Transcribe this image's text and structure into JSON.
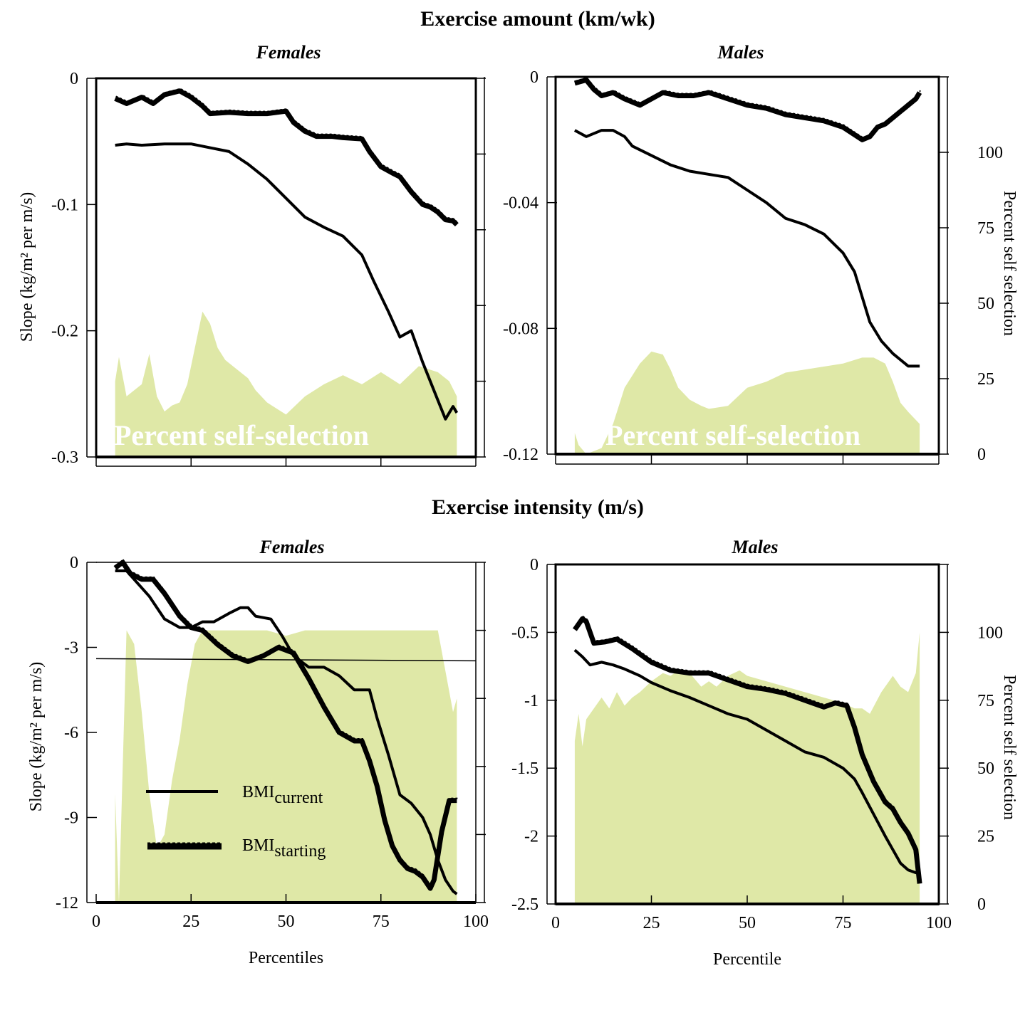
{
  "titles": {
    "top": "Exercise amount (km/wk)",
    "bottom": "Exercise intensity (m/s)"
  },
  "legend": {
    "current_base": "BMI",
    "current_sub": "current",
    "starting_base": "BMI",
    "starting_sub": "starting"
  },
  "colors": {
    "fill": "#dfe8a7",
    "line": "#000000"
  },
  "chart_data": [
    {
      "type": "line",
      "panel": "top-left",
      "title": "Females",
      "ylabel": "Slope (kg/m² per m/s)",
      "ylim": [
        -0.3,
        0
      ],
      "yticks": [
        "0",
        "-0.1",
        "-0.2",
        "-0.3"
      ],
      "yticks_right": [
        "",
        "",
        "",
        "",
        "",
        ""
      ],
      "xlim": [
        0,
        100
      ],
      "xticks": [
        "",
        "",
        "",
        ""
      ],
      "right_axis_label": "",
      "watermark": "Percent self-selection",
      "fill_area": {
        "name": "Percent self-selection",
        "x": [
          5,
          6,
          8,
          10,
          12,
          14,
          16,
          18,
          20,
          22,
          24,
          26,
          28,
          30,
          32,
          34,
          36,
          38,
          40,
          42,
          45,
          50,
          55,
          60,
          65,
          70,
          75,
          80,
          85,
          90,
          93,
          95
        ],
        "y": [
          25,
          33,
          20,
          22,
          24,
          34,
          20,
          15,
          17,
          18,
          24,
          36,
          48,
          44,
          36,
          32,
          30,
          28,
          26,
          22,
          18,
          14,
          20,
          24,
          27,
          24,
          28,
          24,
          30,
          28,
          25,
          20
        ]
      },
      "series": [
        {
          "name": "BMIcurrent",
          "x": [
            5,
            8,
            12,
            18,
            25,
            30,
            35,
            40,
            45,
            50,
            55,
            60,
            65,
            70,
            73,
            77,
            80,
            83,
            86,
            90,
            92,
            94,
            95
          ],
          "y": [
            -0.053,
            -0.052,
            -0.053,
            -0.052,
            -0.052,
            -0.055,
            -0.058,
            -0.068,
            -0.08,
            -0.095,
            -0.11,
            -0.118,
            -0.125,
            -0.14,
            -0.16,
            -0.185,
            -0.205,
            -0.2,
            -0.225,
            -0.255,
            -0.27,
            -0.26,
            -0.265
          ]
        },
        {
          "name": "BMIstarting",
          "x": [
            5,
            8,
            12,
            15,
            18,
            22,
            25,
            28,
            30,
            35,
            40,
            45,
            50,
            52,
            55,
            58,
            62,
            65,
            70,
            72,
            75,
            78,
            80,
            83,
            86,
            88,
            90,
            92,
            94,
            95
          ],
          "y": [
            -0.016,
            -0.02,
            -0.015,
            -0.02,
            -0.013,
            -0.01,
            -0.015,
            -0.022,
            -0.028,
            -0.027,
            -0.028,
            -0.028,
            -0.026,
            -0.035,
            -0.042,
            -0.046,
            -0.046,
            -0.047,
            -0.048,
            -0.058,
            -0.07,
            -0.075,
            -0.078,
            -0.09,
            -0.1,
            -0.102,
            -0.106,
            -0.112,
            -0.113,
            -0.116
          ]
        }
      ]
    },
    {
      "type": "line",
      "panel": "top-right",
      "title": "Males",
      "ylabel": "",
      "ylim": [
        -0.12,
        0
      ],
      "yticks": [
        "0",
        "-0.04",
        "-0.08",
        "-0.12"
      ],
      "yticks_right": [
        "0",
        "25",
        "50",
        "75",
        "100"
      ],
      "xlim": [
        0,
        100
      ],
      "xticks": [
        "",
        "",
        "",
        ""
      ],
      "right_axis_label": "Percent self selection",
      "watermark": "Percent self-selection",
      "fill_area": {
        "name": "Percent self-selection",
        "x": [
          5,
          6,
          8,
          12,
          15,
          18,
          20,
          22,
          25,
          28,
          30,
          32,
          35,
          38,
          40,
          45,
          50,
          55,
          60,
          65,
          70,
          75,
          80,
          83,
          86,
          88,
          90,
          92,
          95
        ],
        "y": [
          7,
          3,
          0,
          2,
          10,
          22,
          26,
          30,
          34,
          33,
          28,
          22,
          18,
          16,
          15,
          16,
          22,
          24,
          27,
          28,
          29,
          30,
          32,
          32,
          30,
          24,
          17,
          14,
          10
        ]
      },
      "series": [
        {
          "name": "BMIcurrent",
          "x": [
            5,
            8,
            12,
            15,
            18,
            20,
            25,
            30,
            35,
            40,
            45,
            50,
            55,
            60,
            65,
            70,
            75,
            78,
            80,
            82,
            85,
            88,
            90,
            92,
            94,
            95
          ],
          "y": [
            -0.017,
            -0.019,
            -0.017,
            -0.017,
            -0.019,
            -0.022,
            -0.025,
            -0.028,
            -0.03,
            -0.031,
            -0.032,
            -0.036,
            -0.04,
            -0.045,
            -0.047,
            -0.05,
            -0.056,
            -0.062,
            -0.07,
            -0.078,
            -0.084,
            -0.088,
            -0.09,
            -0.092,
            -0.092,
            -0.092
          ]
        },
        {
          "name": "BMIstarting",
          "x": [
            5,
            8,
            10,
            12,
            15,
            18,
            22,
            25,
            28,
            32,
            36,
            40,
            45,
            50,
            55,
            60,
            65,
            70,
            75,
            80,
            82,
            84,
            86,
            88,
            90,
            92,
            94,
            95
          ],
          "y": [
            -0.002,
            -0.001,
            -0.004,
            -0.006,
            -0.005,
            -0.007,
            -0.009,
            -0.007,
            -0.005,
            -0.006,
            -0.006,
            -0.005,
            -0.007,
            -0.009,
            -0.01,
            -0.012,
            -0.013,
            -0.014,
            -0.016,
            -0.02,
            -0.019,
            -0.016,
            -0.015,
            -0.013,
            -0.011,
            -0.009,
            -0.007,
            -0.005
          ]
        }
      ]
    },
    {
      "type": "line",
      "panel": "bottom-left",
      "title": "Females",
      "ylabel": "Slope (kg/m² per m/s)",
      "ylim": [
        -12,
        0
      ],
      "yticks": [
        "0",
        "-3",
        "-6",
        "-9",
        "-12"
      ],
      "yticks_right": [
        "",
        "",
        "",
        "",
        "",
        ""
      ],
      "xlim": [
        0,
        100
      ],
      "xticks": [
        "0",
        "25",
        "50",
        "75",
        "100"
      ],
      "xlabel": "Percentiles",
      "right_axis_label": "",
      "watermark": "Percent self-selection",
      "horizontal_line": -3.4,
      "fill_area": {
        "name": "Percent self-selection",
        "x": [
          5,
          6,
          8,
          10,
          12,
          14,
          16,
          18,
          20,
          22,
          24,
          26,
          28,
          30,
          35,
          40,
          45,
          50,
          55,
          60,
          65,
          70,
          75,
          80,
          85,
          90,
          92,
          94,
          95
        ],
        "y": [
          40,
          0,
          100,
          95,
          70,
          40,
          20,
          25,
          45,
          60,
          80,
          95,
          100,
          100,
          100,
          100,
          100,
          98,
          100,
          100,
          100,
          100,
          100,
          100,
          100,
          100,
          85,
          70,
          75
        ]
      },
      "series": [
        {
          "name": "BMIcurrent",
          "x": [
            5,
            8,
            10,
            14,
            16,
            18,
            22,
            25,
            28,
            31,
            35,
            38,
            40,
            42,
            46,
            49,
            52,
            56,
            60,
            64,
            68,
            72,
            74,
            77,
            80,
            83,
            86,
            88,
            90,
            92,
            94,
            95
          ],
          "y": [
            -0.3,
            -0.3,
            -0.6,
            -1.2,
            -1.6,
            -2.0,
            -2.3,
            -2.3,
            -2.1,
            -2.1,
            -1.8,
            -1.6,
            -1.6,
            -1.9,
            -2.0,
            -2.6,
            -3.3,
            -3.7,
            -3.7,
            -4.0,
            -4.5,
            -4.5,
            -5.5,
            -6.8,
            -8.2,
            -8.5,
            -9.0,
            -9.6,
            -10.5,
            -11.2,
            -11.6,
            -11.7
          ]
        },
        {
          "name": "BMIstarting",
          "x": [
            5,
            7,
            9,
            12,
            15,
            18,
            22,
            25,
            28,
            32,
            36,
            40,
            44,
            48,
            52,
            56,
            60,
            64,
            68,
            70,
            72,
            74,
            76,
            78,
            80,
            82,
            84,
            86,
            88,
            89,
            91,
            93,
            95
          ],
          "y": [
            -0.2,
            0.0,
            -0.4,
            -0.6,
            -0.6,
            -1.1,
            -1.9,
            -2.3,
            -2.4,
            -2.9,
            -3.3,
            -3.5,
            -3.3,
            -3.0,
            -3.2,
            -4.1,
            -5.1,
            -6.0,
            -6.3,
            -6.3,
            -7.0,
            -7.9,
            -9.1,
            -10.0,
            -10.5,
            -10.8,
            -10.9,
            -11.1,
            -11.5,
            -11.2,
            -9.5,
            -8.4,
            -8.4
          ]
        }
      ]
    },
    {
      "type": "line",
      "panel": "bottom-right",
      "title": "Males",
      "ylabel": "",
      "ylim": [
        -2.5,
        0
      ],
      "yticks": [
        "0",
        "-0.5",
        "-1",
        "-1.5",
        "-2",
        "-2.5"
      ],
      "yticks_right": [
        "0",
        "25",
        "50",
        "75",
        "100"
      ],
      "xlim": [
        0,
        100
      ],
      "xticks": [
        "0",
        "25",
        "50",
        "75",
        "100"
      ],
      "xlabel": "Percentile",
      "right_axis_label": "Percent self selection",
      "watermark": "Percent self-selection",
      "fill_area": {
        "name": "Percent self-selection",
        "x": [
          5,
          6,
          7,
          8,
          10,
          12,
          14,
          16,
          18,
          20,
          22,
          25,
          28,
          30,
          32,
          35,
          38,
          40,
          42,
          45,
          48,
          50,
          55,
          60,
          65,
          70,
          75,
          78,
          80,
          82,
          85,
          88,
          90,
          92,
          94,
          95
        ],
        "y": [
          60,
          70,
          58,
          68,
          72,
          76,
          72,
          78,
          73,
          76,
          78,
          82,
          85,
          84,
          86,
          85,
          80,
          82,
          80,
          84,
          86,
          84,
          82,
          80,
          78,
          76,
          74,
          72,
          72,
          70,
          78,
          84,
          80,
          78,
          85,
          100
        ]
      },
      "series": [
        {
          "name": "BMIcurrent",
          "x": [
            5,
            7,
            9,
            12,
            15,
            18,
            22,
            25,
            30,
            35,
            40,
            45,
            50,
            55,
            60,
            65,
            70,
            75,
            78,
            80,
            83,
            86,
            88,
            90,
            92,
            94,
            95
          ],
          "y": [
            -0.63,
            -0.68,
            -0.74,
            -0.72,
            -0.74,
            -0.77,
            -0.82,
            -0.87,
            -0.93,
            -0.98,
            -1.04,
            -1.1,
            -1.14,
            -1.22,
            -1.3,
            -1.38,
            -1.42,
            -1.5,
            -1.58,
            -1.68,
            -1.84,
            -2.0,
            -2.1,
            -2.2,
            -2.25,
            -2.27,
            -2.25
          ]
        },
        {
          "name": "BMIstarting",
          "x": [
            5,
            7,
            8,
            10,
            13,
            16,
            20,
            25,
            30,
            35,
            40,
            45,
            50,
            55,
            60,
            65,
            70,
            73,
            76,
            78,
            80,
            83,
            86,
            88,
            90,
            92,
            94,
            95
          ],
          "y": [
            -0.48,
            -0.4,
            -0.42,
            -0.58,
            -0.57,
            -0.55,
            -0.62,
            -0.72,
            -0.78,
            -0.8,
            -0.8,
            -0.85,
            -0.9,
            -0.92,
            -0.95,
            -1.0,
            -1.05,
            -1.02,
            -1.04,
            -1.2,
            -1.4,
            -1.6,
            -1.75,
            -1.8,
            -1.9,
            -1.98,
            -2.1,
            -2.35
          ]
        }
      ]
    }
  ]
}
